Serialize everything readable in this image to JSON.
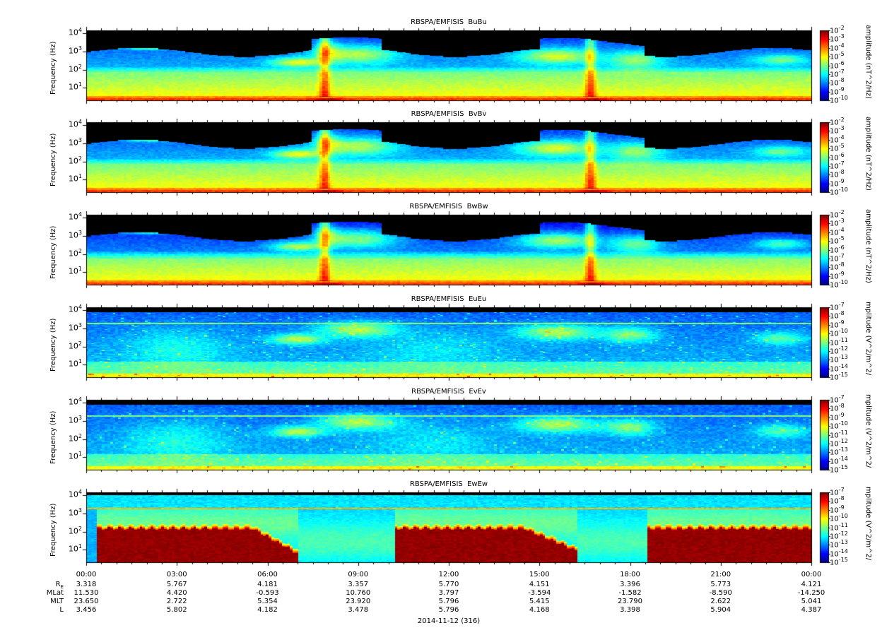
{
  "chart_data": [
    {
      "type": "heatmap",
      "title": "RBSPA/EMFISIS  BuBu",
      "ylabel": "Frequency (Hz)",
      "colorbar_label": "amplitude (nT^2/Hz)",
      "yscale": "log",
      "ylim": [
        2,
        15000
      ],
      "yticks": [
        "10",
        "10",
        "10",
        "10"
      ],
      "ytick_exp": [
        "1",
        "2",
        "3",
        "4"
      ],
      "ctick_exp": [
        "-2",
        "-3",
        "-4",
        "-5",
        "-6",
        "-7",
        "-8",
        "-9",
        "-10"
      ],
      "variant": "B"
    },
    {
      "type": "heatmap",
      "title": "RBSPA/EMFISIS  BvBv",
      "ylabel": "Frequency (Hz)",
      "colorbar_label": "amplitude (nT^2/Hz)",
      "yscale": "log",
      "ylim": [
        2,
        15000
      ],
      "yticks": [
        "10",
        "10",
        "10",
        "10"
      ],
      "ytick_exp": [
        "1",
        "2",
        "3",
        "4"
      ],
      "ctick_exp": [
        "-2",
        "-3",
        "-4",
        "-5",
        "-6",
        "-7",
        "-8",
        "-9",
        "-10"
      ],
      "variant": "B"
    },
    {
      "type": "heatmap",
      "title": "RBSPA/EMFISIS  BwBw",
      "ylabel": "Frequency (Hz)",
      "colorbar_label": "amplitude (nT^2/Hz)",
      "yscale": "log",
      "ylim": [
        2,
        15000
      ],
      "yticks": [
        "10",
        "10",
        "10",
        "10"
      ],
      "ytick_exp": [
        "1",
        "2",
        "3",
        "4"
      ],
      "ctick_exp": [
        "-2",
        "-3",
        "-4",
        "-5",
        "-6",
        "-7",
        "-8",
        "-9",
        "-10"
      ],
      "variant": "Bw"
    },
    {
      "type": "heatmap",
      "title": "RBSPA/EMFISIS  EuEu",
      "ylabel": "Frequency (Hz)",
      "colorbar_label": "mplitude (V^2/m^2/",
      "yscale": "log",
      "ylim": [
        2,
        15000
      ],
      "yticks": [
        "10",
        "10",
        "10",
        "10"
      ],
      "ytick_exp": [
        "1",
        "2",
        "3",
        "4"
      ],
      "ctick_exp": [
        "-7",
        "-8",
        "-9",
        "-10",
        "-11",
        "-12",
        "-13",
        "-14",
        "-15"
      ],
      "variant": "E"
    },
    {
      "type": "heatmap",
      "title": "RBSPA/EMFISIS  EvEv",
      "ylabel": "Frequency (Hz)",
      "colorbar_label": "mplitude (V^2/m^2/",
      "yscale": "log",
      "ylim": [
        2,
        15000
      ],
      "yticks": [
        "10",
        "10",
        "10",
        "10"
      ],
      "ytick_exp": [
        "1",
        "2",
        "3",
        "4"
      ],
      "ctick_exp": [
        "-7",
        "-8",
        "-9",
        "-10",
        "-11",
        "-12",
        "-13",
        "-14",
        "-15"
      ],
      "variant": "E"
    },
    {
      "type": "heatmap",
      "title": "RBSPA/EMFISIS  EwEw",
      "ylabel": "Frequency (Hz)",
      "colorbar_label": "mplitude (V^2/m^2/",
      "yscale": "log",
      "ylim": [
        2,
        15000
      ],
      "yticks": [
        "10",
        "10",
        "10",
        "10"
      ],
      "ytick_exp": [
        "1",
        "2",
        "3",
        "4"
      ],
      "ctick_exp": [
        "-7",
        "-8",
        "-9",
        "-10",
        "-11",
        "-12",
        "-13",
        "-14",
        "-15"
      ],
      "variant": "Ew"
    }
  ],
  "x_axis": {
    "ticks": [
      "00:00",
      "03:00",
      "06:00",
      "09:00",
      "12:00",
      "15:00",
      "18:00",
      "21:00",
      "00:00"
    ],
    "date_label": "2014-11-12 (316)"
  },
  "ephemeris": {
    "rows": [
      {
        "name": "R",
        "sub": "E",
        "values": [
          "3.318",
          "5.767",
          "4.181",
          "3.357",
          "5.770",
          "4.151",
          "3.396",
          "5.773",
          "4.121"
        ]
      },
      {
        "name": "MLat",
        "sub": "",
        "values": [
          "11.530",
          "4.420",
          "-0.593",
          "10.760",
          "3.797",
          "-3.594",
          "-1.582",
          "-8.590",
          "-14.250"
        ]
      },
      {
        "name": "MLT",
        "sub": "",
        "values": [
          "23.650",
          "2.722",
          "5.354",
          "23.920",
          "5.796",
          "5.415",
          "23.790",
          "2.622",
          "5.041"
        ]
      },
      {
        "name": "L",
        "sub": "",
        "values": [
          "3.456",
          "5.802",
          "4.182",
          "3.478",
          "5.796",
          "4.168",
          "3.398",
          "5.904",
          "4.387"
        ]
      }
    ]
  },
  "colors": {
    "background": "#ffffff",
    "fill_empty": "#000000"
  }
}
